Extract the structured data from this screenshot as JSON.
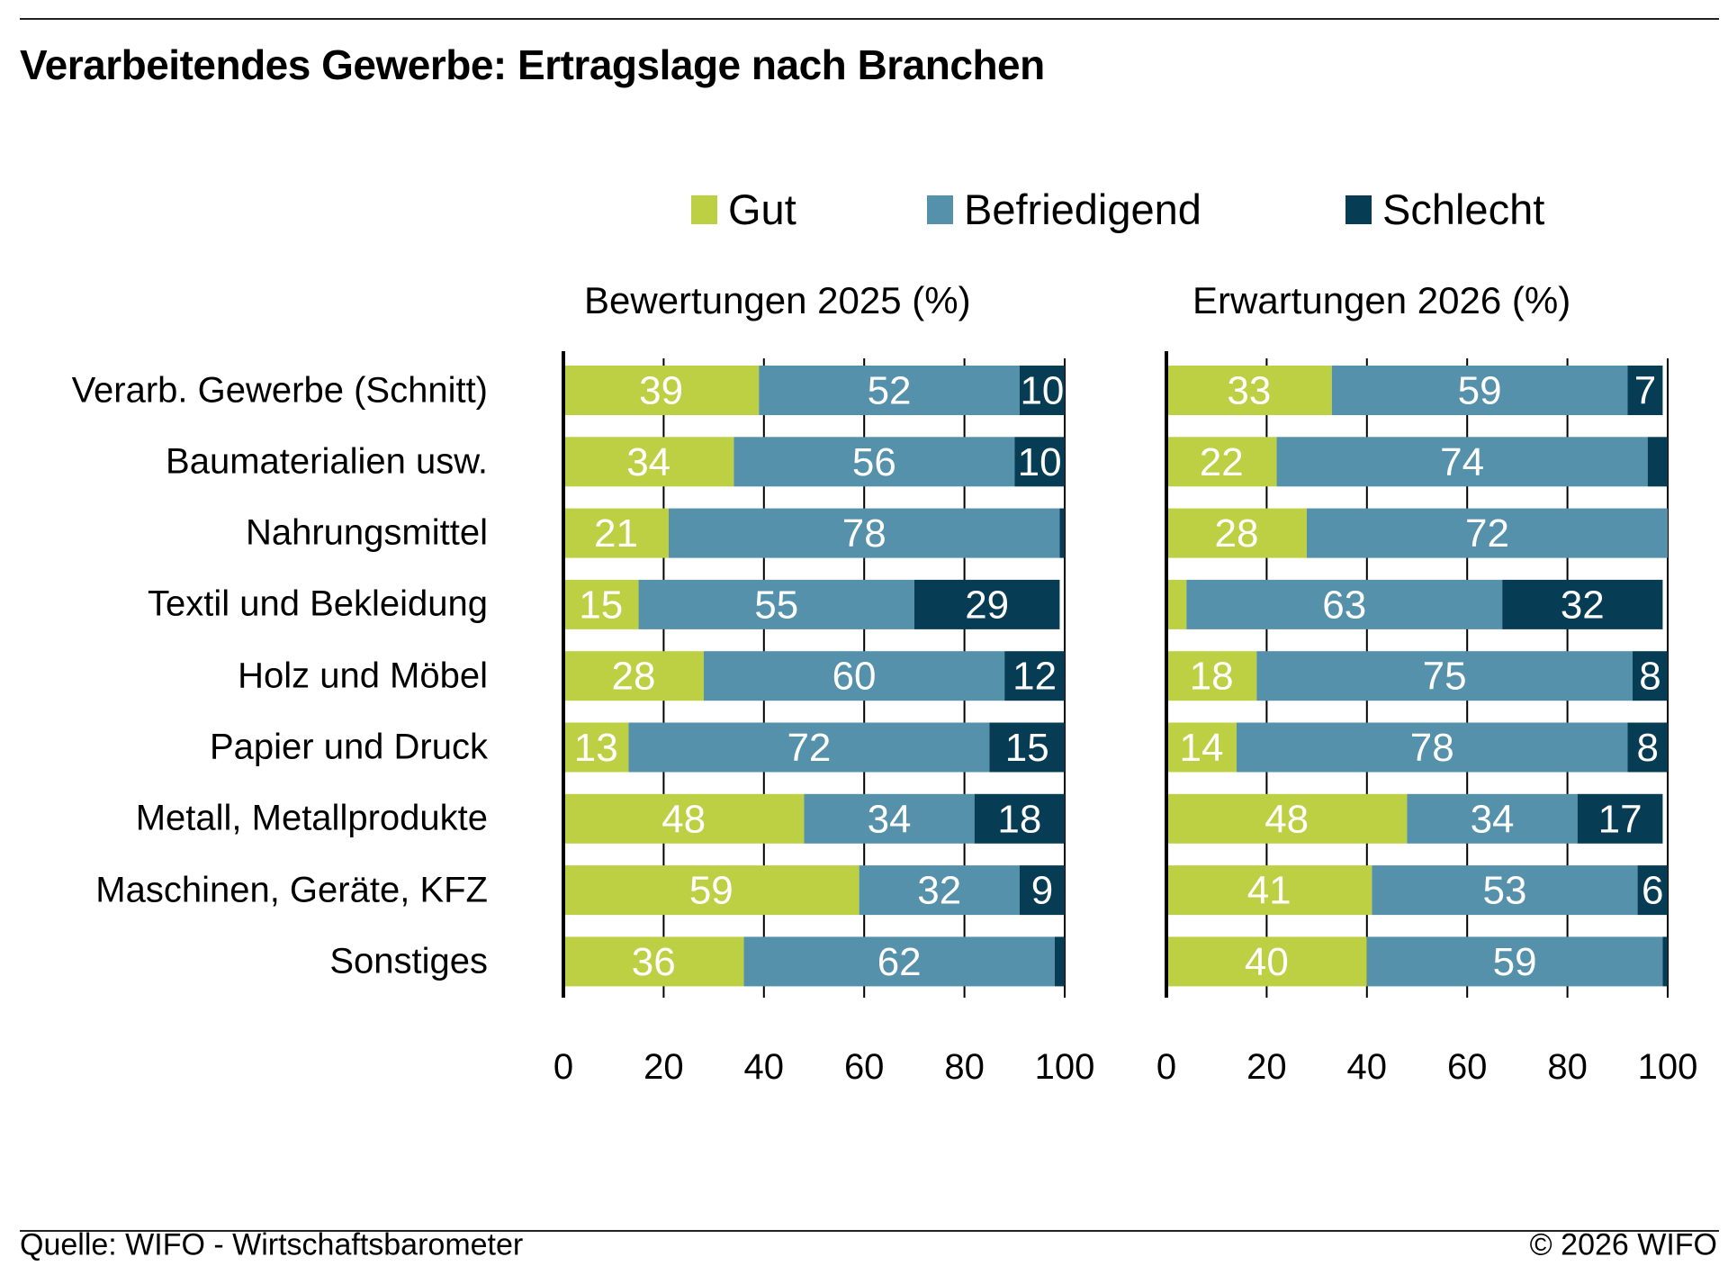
{
  "chart_data": {
    "type": "bar",
    "orientation": "horizontal-stacked",
    "title": "Verarbeitendes Gewerbe: Ertragslage nach Branchen",
    "legend": [
      "Gut",
      "Befriedigend",
      "Schlecht"
    ],
    "legend_placement": "top-center",
    "colors": {
      "Gut": "#BDD043",
      "Befriedigend": "#5591AB",
      "Schlecht": "#073C55"
    },
    "categories": [
      "Verarb. Gewerbe (Schnitt)",
      "Baumaterialien usw.",
      "Nahrungsmittel",
      "Textil und Bekleidung",
      "Holz und Möbel",
      "Papier und Druck",
      "Metall, Metallprodukte",
      "Maschinen, Geräte, KFZ",
      "Sonstiges"
    ],
    "xlim": [
      0,
      100
    ],
    "xticks": [
      0,
      20,
      40,
      60,
      80,
      100
    ],
    "grid": "vertical",
    "panels": [
      {
        "title": "Bewertungen 2025 (%)",
        "series": [
          {
            "name": "Gut",
            "values": [
              39,
              34,
              21,
              15,
              28,
              13,
              48,
              59,
              36
            ],
            "labels": [
              "39",
              "34",
              "21",
              "15",
              "28",
              "13",
              "48",
              "59",
              "36"
            ]
          },
          {
            "name": "Befriedigend",
            "values": [
              52,
              56,
              78,
              55,
              60,
              72,
              34,
              32,
              62
            ],
            "labels": [
              "52",
              "56",
              "78",
              "55",
              "60",
              "72",
              "34",
              "32",
              "62"
            ]
          },
          {
            "name": "Schlecht",
            "values": [
              10,
              10,
              1,
              29,
              12,
              15,
              18,
              9,
              2
            ],
            "labels": [
              "10",
              "10",
              "",
              "29",
              "12",
              "15",
              "18",
              "9",
              ""
            ]
          }
        ]
      },
      {
        "title": "Erwartungen 2026 (%)",
        "series": [
          {
            "name": "Gut",
            "values": [
              33,
              22,
              28,
              4,
              18,
              14,
              48,
              41,
              40
            ],
            "labels": [
              "33",
              "22",
              "28",
              "",
              "18",
              "14",
              "48",
              "41",
              "40"
            ]
          },
          {
            "name": "Befriedigend",
            "values": [
              59,
              74,
              72,
              63,
              75,
              78,
              34,
              53,
              59
            ],
            "labels": [
              "59",
              "74",
              "72",
              "63",
              "75",
              "78",
              "34",
              "53",
              "59"
            ]
          },
          {
            "name": "Schlecht",
            "values": [
              7,
              4,
              0,
              32,
              8,
              8,
              17,
              6,
              1
            ],
            "labels": [
              "7",
              "",
              "",
              "32",
              "8",
              "8",
              "17",
              "6",
              ""
            ]
          }
        ]
      }
    ]
  },
  "footer": {
    "source": "Quelle: WIFO - Wirtschaftsbarometer",
    "copyright": "© 2026 WIFO"
  }
}
